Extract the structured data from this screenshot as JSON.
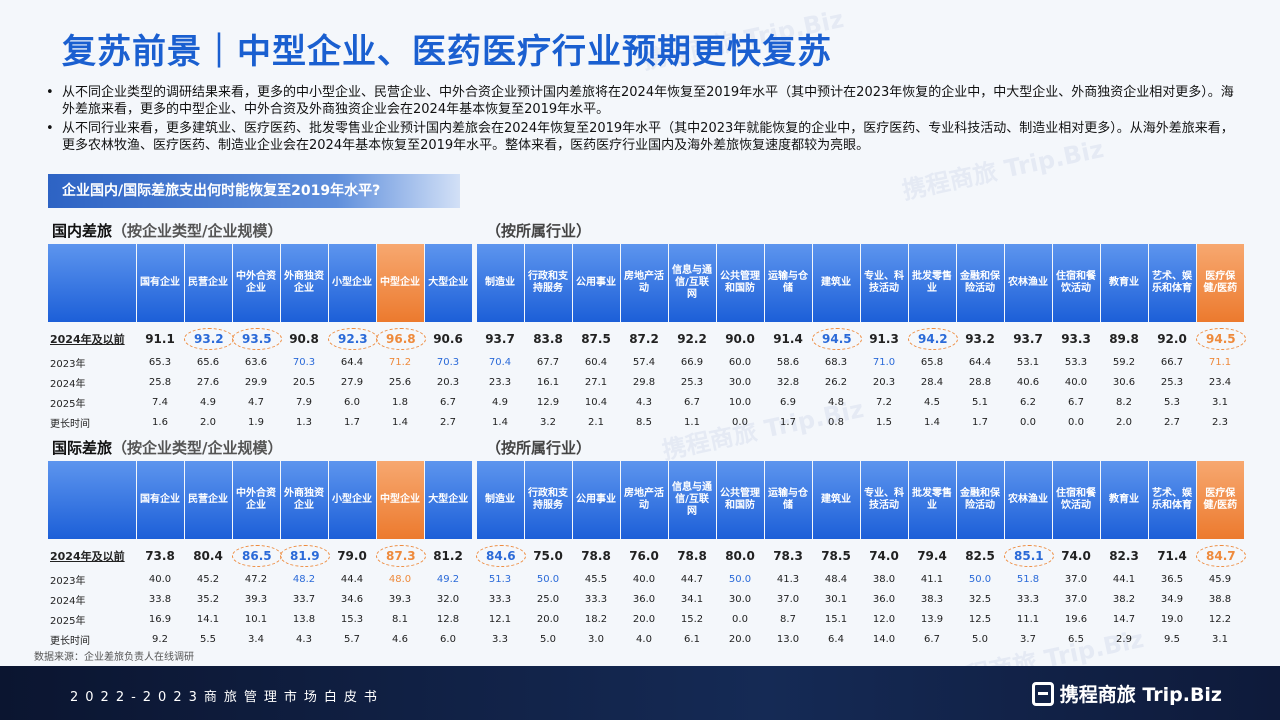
{
  "title": "复苏前景｜中型企业、医药医疗行业预期更快复苏",
  "bullets": [
    "从不同企业类型的调研结果来看，更多的中小型企业、民营企业、中外合资企业预计国内差旅将在2024年恢复至2019年水平（其中预计在2023年恢复的企业中，中大型企业、外商独资企业相对更多）。海外差旅来看，更多的中型企业、中外合资及外商独资企业会在2024年基本恢复至2019年水平。",
    "从不同行业来看，更多建筑业、医疗医药、批发零售业企业预计国内差旅会在2024年恢复至2019年水平（其中2023年就能恢复的企业中，医疗医药、专业科技活动、制造业相对更多）。从海外差旅来看，更多农林牧渔、医疗医药、制造业企业会在2024年基本恢复至2019年水平。整体来看，医药医疗行业国内及海外差旅恢复速度都较为亮眼。"
  ],
  "banner": "企业国内/国际差旅支出何时能恢复至2019年水平?",
  "domestic": {
    "heading": "国内差旅",
    "subheading": "（按企业类型/企业规模）",
    "industry_heading": "（按所属行业）"
  },
  "international": {
    "heading": "国际差旅",
    "subheading": "（按企业类型/企业规模）",
    "industry_heading": "（按所属行业）"
  },
  "columns_type": [
    "国有企业",
    "民营企业",
    "中外合资企业",
    "外商独资企业",
    "小型企业",
    "中型企业",
    "大型企业"
  ],
  "columns_industry": [
    "制造业",
    "行政和支持服务",
    "公用事业",
    "房地产活动",
    "信息与通信/互联网",
    "公共管理和国防",
    "运输与仓储",
    "建筑业",
    "专业、科技活动",
    "批发零售业",
    "金融和保险活动",
    "农林渔业",
    "住宿和餐饮活动",
    "教育业",
    "艺术、娱乐和体育",
    "医疗保健/医药"
  ],
  "row_labels": [
    "2024年及以前",
    "2023年",
    "2024年",
    "2025年",
    "更长时间"
  ],
  "domestic_rows": [
    [
      "91.1",
      "93.2",
      "93.5",
      "90.8",
      "92.3",
      "96.8",
      "90.6",
      "93.7",
      "83.8",
      "87.5",
      "87.2",
      "92.2",
      "90.0",
      "91.4",
      "94.5",
      "91.3",
      "94.2",
      "93.2",
      "93.7",
      "93.3",
      "89.8",
      "92.0",
      "94.5"
    ],
    [
      "65.3",
      "65.6",
      "63.6",
      "70.3",
      "64.4",
      "71.2",
      "70.3",
      "70.4",
      "67.7",
      "60.4",
      "57.4",
      "66.9",
      "60.0",
      "58.6",
      "68.3",
      "71.0",
      "65.8",
      "64.4",
      "53.1",
      "53.3",
      "59.2",
      "66.7",
      "71.1"
    ],
    [
      "25.8",
      "27.6",
      "29.9",
      "20.5",
      "27.9",
      "25.6",
      "20.3",
      "23.3",
      "16.1",
      "27.1",
      "29.8",
      "25.3",
      "30.0",
      "32.8",
      "26.2",
      "20.3",
      "28.4",
      "28.8",
      "40.6",
      "40.0",
      "30.6",
      "25.3",
      "23.4"
    ],
    [
      "7.4",
      "4.9",
      "4.7",
      "7.9",
      "6.0",
      "1.8",
      "6.7",
      "4.9",
      "12.9",
      "10.4",
      "4.3",
      "6.7",
      "10.0",
      "6.9",
      "4.8",
      "7.2",
      "4.5",
      "5.1",
      "6.2",
      "6.7",
      "8.2",
      "5.3",
      "3.1"
    ],
    [
      "1.6",
      "2.0",
      "1.9",
      "1.3",
      "1.7",
      "1.4",
      "2.7",
      "1.4",
      "3.2",
      "2.1",
      "8.5",
      "1.1",
      "0.0",
      "1.7",
      "0.8",
      "1.5",
      "1.4",
      "1.7",
      "0.0",
      "0.0",
      "2.0",
      "2.7",
      "2.3"
    ]
  ],
  "international_rows": [
    [
      "73.8",
      "80.4",
      "86.5",
      "81.9",
      "79.0",
      "87.3",
      "81.2",
      "84.6",
      "75.0",
      "78.8",
      "76.0",
      "78.8",
      "80.0",
      "78.3",
      "78.5",
      "74.0",
      "79.4",
      "82.5",
      "85.1",
      "74.0",
      "82.3",
      "71.4",
      "84.7"
    ],
    [
      "40.0",
      "45.2",
      "47.2",
      "48.2",
      "44.4",
      "48.0",
      "49.2",
      "51.3",
      "50.0",
      "45.5",
      "40.0",
      "44.7",
      "50.0",
      "41.3",
      "48.4",
      "38.0",
      "41.1",
      "50.0",
      "51.8",
      "37.0",
      "44.1",
      "36.5",
      "45.9"
    ],
    [
      "33.8",
      "35.2",
      "39.3",
      "33.7",
      "34.6",
      "39.3",
      "32.0",
      "33.3",
      "25.0",
      "33.3",
      "36.0",
      "34.1",
      "30.0",
      "37.0",
      "30.1",
      "36.0",
      "38.3",
      "32.5",
      "33.3",
      "37.0",
      "38.2",
      "34.9",
      "38.8"
    ],
    [
      "16.9",
      "14.1",
      "10.1",
      "13.8",
      "15.3",
      "8.1",
      "12.8",
      "12.1",
      "20.0",
      "18.2",
      "20.0",
      "15.2",
      "0.0",
      "8.7",
      "15.1",
      "12.0",
      "13.9",
      "12.5",
      "11.1",
      "19.6",
      "14.7",
      "19.0",
      "12.2"
    ],
    [
      "9.2",
      "5.5",
      "3.4",
      "4.3",
      "5.7",
      "4.6",
      "6.0",
      "3.3",
      "5.0",
      "3.0",
      "4.0",
      "6.1",
      "20.0",
      "13.0",
      "6.4",
      "14.0",
      "6.7",
      "5.0",
      "3.7",
      "6.5",
      "2.9",
      "9.5",
      "3.1"
    ]
  ],
  "domestic_styles": {
    "circled_blue_first_row": [
      1,
      2,
      4,
      14,
      16
    ],
    "circled_orange_first_row": [
      5,
      22
    ],
    "blue_cells_row2": [
      3,
      6,
      7,
      15
    ],
    "orange_cells_row2": [
      5,
      22
    ]
  },
  "international_styles": {
    "circled_blue_first_row": [
      2,
      3,
      7,
      18
    ],
    "circled_orange_first_row": [
      5,
      22
    ],
    "blue_cells_row2": [
      3,
      6,
      7,
      8,
      12,
      17,
      18
    ],
    "orange_cells_row2": [
      5
    ]
  },
  "highlight_columns": [
    5,
    22
  ],
  "colors": {
    "title": "#1a5fd0",
    "header_blue": "#1c5fd8",
    "header_orange": "#ec7a2e",
    "value_blue": "#2b6ad8",
    "value_orange": "#ee8a3c"
  },
  "source": "数据来源：企业差旅负责人在线调研",
  "footer": "2022-2023商旅管理市场白皮书",
  "logo": "携程商旅 Trip.Biz",
  "watermark": "携程商旅 Trip.Biz"
}
